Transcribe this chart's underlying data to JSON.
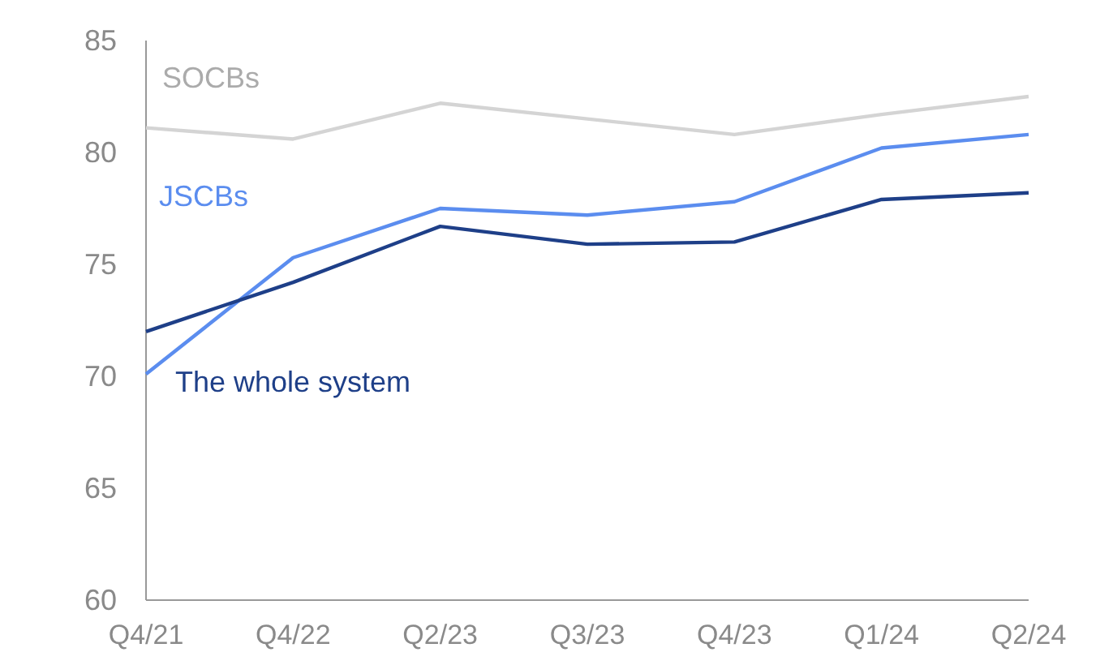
{
  "chart_data": {
    "type": "line",
    "categories": [
      "Q4/21",
      "Q4/22",
      "Q2/23",
      "Q3/23",
      "Q4/23",
      "Q1/24",
      "Q2/24"
    ],
    "series": [
      {
        "name": "SOCBs",
        "color": "#d4d4d4",
        "values": [
          81.1,
          80.6,
          82.2,
          81.5,
          80.8,
          81.7,
          82.5
        ]
      },
      {
        "name": "JSCBs",
        "color": "#5b8def",
        "values": [
          70.1,
          75.3,
          77.5,
          77.2,
          77.8,
          80.2,
          80.8
        ]
      },
      {
        "name": "The whole system",
        "color": "#1e3f88",
        "values": [
          72.0,
          74.2,
          76.7,
          75.9,
          76.0,
          77.9,
          78.2
        ]
      }
    ],
    "ylim": [
      60,
      85
    ],
    "yticks": [
      60,
      65,
      70,
      75,
      80,
      85
    ],
    "grid": false,
    "legend": false,
    "marker": "none",
    "line_style": "solid"
  }
}
